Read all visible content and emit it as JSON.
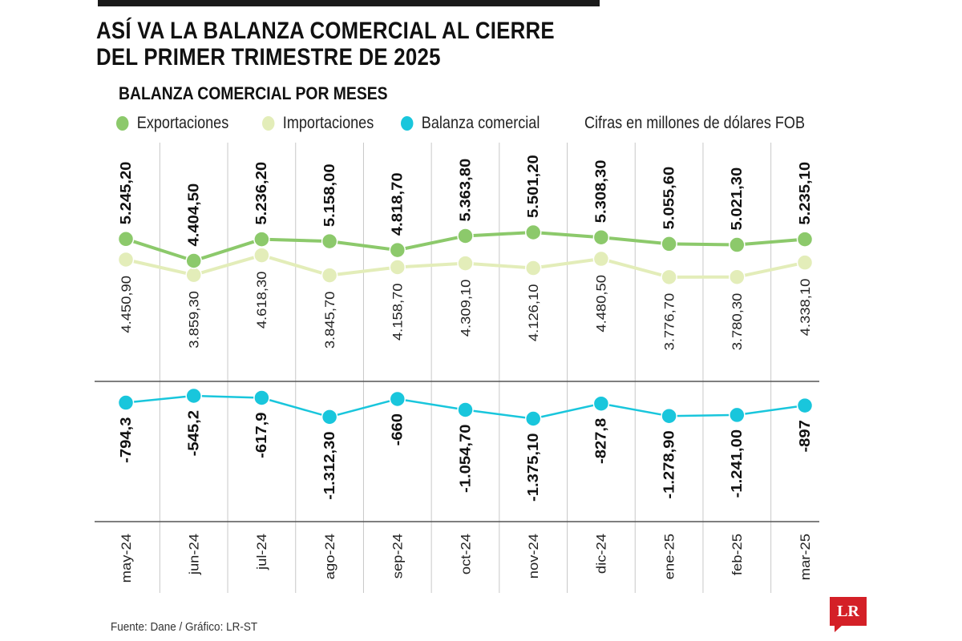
{
  "title": "ASÍ VA LA BALANZA COMERCIAL AL CIERRE DEL PRIMER TRIMESTRE DE 2025",
  "subtitle": "BALANZA COMERCIAL POR MESES",
  "legend": {
    "exportaciones": "Exportaciones",
    "importaciones": "Importaciones",
    "balanza": "Balanza comercial",
    "units": "Cifras en millones de dólares FOB"
  },
  "source": "Fuente: Dane / Gráfico: LR-ST",
  "logo": "LR",
  "colors": {
    "exportaciones": "#8cc96b",
    "importaciones": "#e3edb9",
    "balanza": "#19c6dc",
    "grid": "#c8c8c8",
    "divider": "#555555"
  },
  "chart_data": {
    "type": "line",
    "categories": [
      "may-24",
      "jun-24",
      "jul-24",
      "ago-24",
      "sep-24",
      "oct-24",
      "nov-24",
      "dic-24",
      "ene-25",
      "feb-25",
      "mar-25"
    ],
    "series": [
      {
        "name": "Exportaciones",
        "values": [
          5245.2,
          4404.5,
          5236.2,
          5158.0,
          4818.7,
          5363.8,
          5501.2,
          5308.3,
          5055.6,
          5021.3,
          5235.1
        ],
        "labels": [
          "5.245,20",
          "4.404,50",
          "5.236,20",
          "5.158,00",
          "4.818,70",
          "5.363,80",
          "5.501,20",
          "5.308,30",
          "5.055,60",
          "5.021,30",
          "5.235,10"
        ]
      },
      {
        "name": "Importaciones",
        "values": [
          4450.9,
          3859.3,
          4618.3,
          3845.7,
          4158.7,
          4309.1,
          4126.1,
          4480.5,
          3776.7,
          3780.3,
          4338.1
        ],
        "labels": [
          "4.450,90",
          "3.859,30",
          "4.618,30",
          "3.845,70",
          "4.158,70",
          "4.309,10",
          "4.126,10",
          "4.480,50",
          "3.776,70",
          "3.780,30",
          "4.338,10"
        ]
      },
      {
        "name": "Balanza comercial",
        "values": [
          -794.3,
          -545.2,
          -617.9,
          -1312.3,
          -660,
          -1054.7,
          -1375.1,
          -827.8,
          -1278.9,
          -1241.0,
          -897
        ],
        "labels": [
          "-794,3",
          "-545,2",
          "-617,9",
          "-1.312,30",
          "-660",
          "-1.054,70",
          "-1.375,10",
          "-827,8",
          "-1.278,90",
          "-1.241,00",
          "-897"
        ]
      }
    ]
  }
}
